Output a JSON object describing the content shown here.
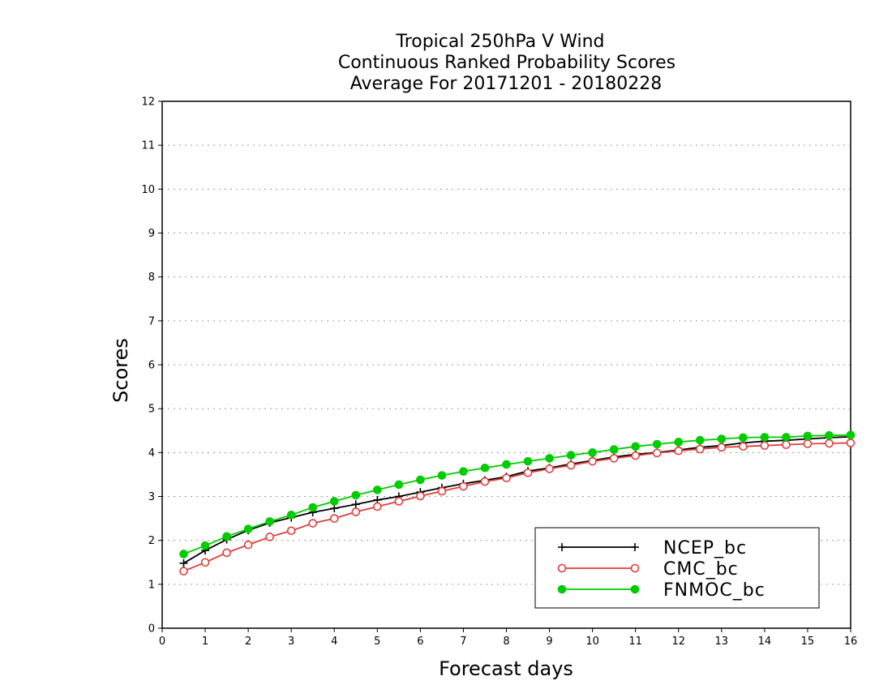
{
  "chart_data": {
    "type": "line",
    "title": [
      "Tropical 250hPa V Wind",
      "Continuous Ranked Probability Scores",
      "Average For 20171201 - 20180228"
    ],
    "xlabel": "Forecast days",
    "ylabel": "Scores",
    "xlim": [
      0,
      16
    ],
    "ylim": [
      0,
      12
    ],
    "xticks": [
      "0",
      "1",
      "2",
      "3",
      "4",
      "5",
      "6",
      "7",
      "8",
      "9",
      "10",
      "11",
      "12",
      "13",
      "14",
      "15",
      "16"
    ],
    "yticks": [
      "0",
      "1",
      "2",
      "3",
      "4",
      "5",
      "6",
      "7",
      "8",
      "9",
      "10",
      "11",
      "12"
    ],
    "grid": "horizontal dotted",
    "legend_position": "bottom-right",
    "x": [
      0.5,
      1,
      1.5,
      2,
      2.5,
      3,
      3.5,
      4,
      4.5,
      5,
      5.5,
      6,
      6.5,
      7,
      7.5,
      8,
      8.5,
      9,
      9.5,
      10,
      10.5,
      11,
      11.5,
      12,
      12.5,
      13,
      13.5,
      14,
      14.5,
      15,
      15.5,
      16
    ],
    "series": [
      {
        "name": "NCEP_bc",
        "color": "#000000",
        "marker": "plus",
        "values": [
          1.48,
          1.77,
          2.02,
          2.23,
          2.4,
          2.52,
          2.64,
          2.73,
          2.82,
          2.92,
          3.0,
          3.1,
          3.2,
          3.29,
          3.37,
          3.45,
          3.58,
          3.65,
          3.74,
          3.82,
          3.9,
          3.96,
          4.0,
          4.06,
          4.12,
          4.16,
          4.22,
          4.26,
          4.28,
          4.31,
          4.34,
          4.36
        ]
      },
      {
        "name": "CMC_bc",
        "color": "#e03c3c",
        "marker": "open-circle",
        "values": [
          1.3,
          1.5,
          1.72,
          1.9,
          2.08,
          2.22,
          2.39,
          2.5,
          2.65,
          2.77,
          2.89,
          3.01,
          3.12,
          3.23,
          3.34,
          3.42,
          3.54,
          3.63,
          3.71,
          3.8,
          3.87,
          3.93,
          3.99,
          4.04,
          4.08,
          4.12,
          4.14,
          4.16,
          4.18,
          4.2,
          4.21,
          4.22
        ]
      },
      {
        "name": "FNMOC_bc",
        "color": "#00cc00",
        "marker": "filled-circle",
        "values": [
          1.69,
          1.88,
          2.09,
          2.26,
          2.43,
          2.58,
          2.75,
          2.89,
          3.03,
          3.15,
          3.27,
          3.38,
          3.48,
          3.57,
          3.65,
          3.73,
          3.8,
          3.87,
          3.94,
          4.0,
          4.07,
          4.14,
          4.19,
          4.24,
          4.28,
          4.31,
          4.34,
          4.35,
          4.35,
          4.38,
          4.39,
          4.4
        ]
      }
    ]
  }
}
